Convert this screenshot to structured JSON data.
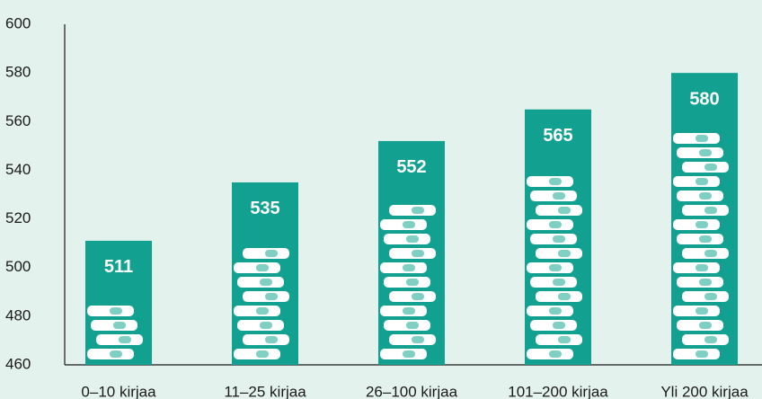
{
  "chart_data": {
    "type": "bar",
    "categories": [
      "0–10 kirjaa",
      "11–25 kirjaa",
      "26–100 kirjaa",
      "101–200 kirjaa",
      "Yli 200 kirjaa"
    ],
    "values": [
      511,
      535,
      552,
      565,
      580
    ],
    "color": "#12a191",
    "ylim": [
      460,
      600
    ],
    "yticks": [
      460,
      480,
      500,
      520,
      540,
      560,
      580,
      600
    ],
    "grid": false
  }
}
